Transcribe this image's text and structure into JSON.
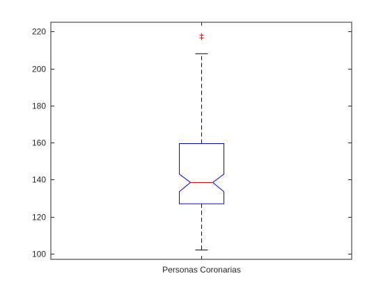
{
  "chart_data": {
    "type": "boxplot",
    "title": "",
    "xlabel": "",
    "ylabel": "",
    "ylim": [
      97,
      225
    ],
    "yticks": [
      100,
      120,
      140,
      160,
      180,
      200,
      220
    ],
    "grid": false,
    "notched": true,
    "categories": [
      "Personas Coronarias"
    ],
    "boxes": [
      {
        "category": "Personas Coronarias",
        "whisker_low": 102,
        "q1": 127,
        "median": 138.5,
        "q3": 159.5,
        "whisker_high": 208,
        "notch_low": 133.5,
        "notch_high": 143,
        "outliers": [
          216.5,
          218
        ]
      }
    ],
    "colors": {
      "box": "#0000ff",
      "median": "#ff0000",
      "whisker": "#000000",
      "outlier": "#ff0000",
      "axes": "#262626"
    }
  }
}
